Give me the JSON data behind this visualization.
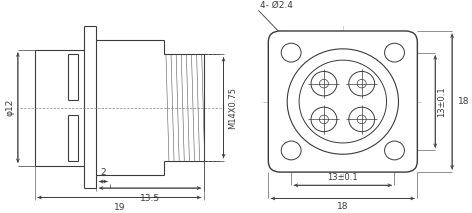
{
  "bg_color": "#ffffff",
  "line_color": "#3a3a3a",
  "dim_color": "#3a3a3a",
  "font_size": 6.5,
  "fig_width": 4.72,
  "fig_height": 2.13,
  "dpi": 100,
  "side_view": {
    "labels": {
      "phi12": "φ12",
      "m14x075": "M14X0.75",
      "dim2": "2",
      "dim135": "13.5",
      "dim19": "19"
    }
  },
  "front_view": {
    "labels": {
      "holes": "4- Ø2.4",
      "dim13_01h": "13±0.1",
      "dim18h": "18",
      "dim13_01v": "13±0.1",
      "dim18v": "18"
    }
  }
}
